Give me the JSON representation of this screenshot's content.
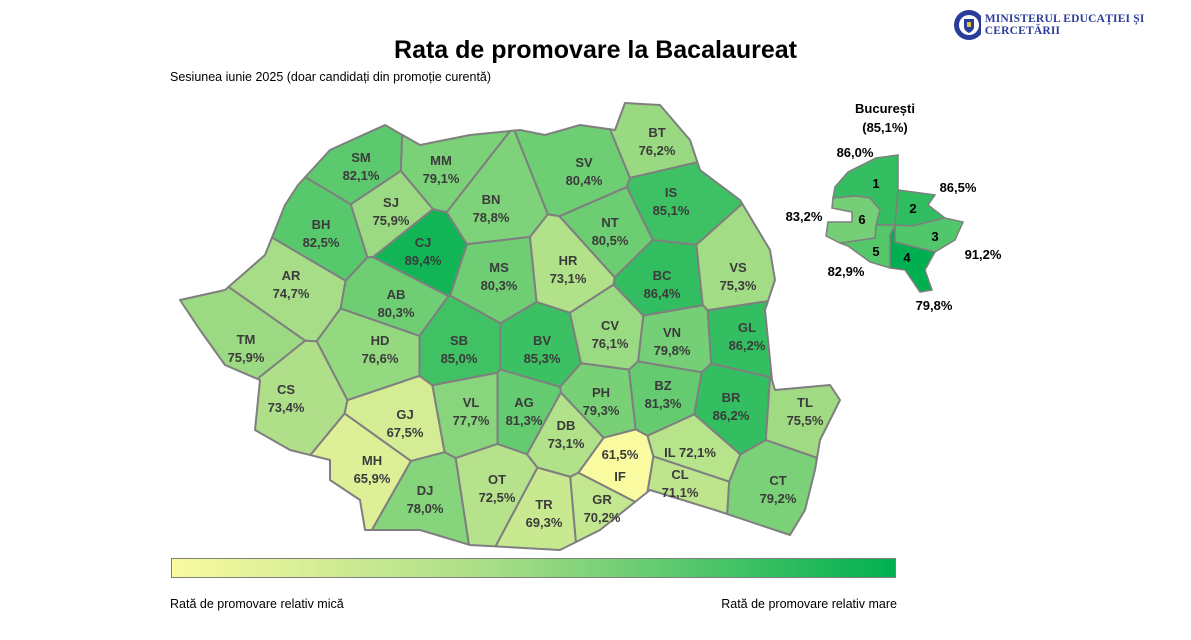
{
  "header": {
    "title": "Rata de promovare la Bacalaureat",
    "subtitle": "Sesiunea iunie 2025 (doar candidați din promoție curentă)",
    "logo_text": "MINISTERUL EDUCAȚIEI ȘI CERCETĂRII"
  },
  "color_scale": {
    "low": "#fafaa0",
    "mid": "#a6dd86",
    "high": "#00b050",
    "border": "#7f7f7f"
  },
  "counties": [
    {
      "code": "SM",
      "rate": "82,1%",
      "value": 82.1
    },
    {
      "code": "MM",
      "rate": "79,1%",
      "value": 79.1
    },
    {
      "code": "BT",
      "rate": "76,2%",
      "value": 76.2
    },
    {
      "code": "SV",
      "rate": "80,4%",
      "value": 80.4
    },
    {
      "code": "BH",
      "rate": "82,5%",
      "value": 82.5
    },
    {
      "code": "SJ",
      "rate": "75,9%",
      "value": 75.9
    },
    {
      "code": "CJ",
      "rate": "89,4%",
      "value": 89.4
    },
    {
      "code": "BN",
      "rate": "78,8%",
      "value": 78.8
    },
    {
      "code": "IS",
      "rate": "85,1%",
      "value": 85.1
    },
    {
      "code": "NT",
      "rate": "80,5%",
      "value": 80.5
    },
    {
      "code": "AR",
      "rate": "74,7%",
      "value": 74.7
    },
    {
      "code": "MS",
      "rate": "80,3%",
      "value": 80.3
    },
    {
      "code": "HR",
      "rate": "73,1%",
      "value": 73.1
    },
    {
      "code": "BC",
      "rate": "86,4%",
      "value": 86.4
    },
    {
      "code": "VS",
      "rate": "75,3%",
      "value": 75.3
    },
    {
      "code": "AB",
      "rate": "80,3%",
      "value": 80.3
    },
    {
      "code": "TM",
      "rate": "75,9%",
      "value": 75.9
    },
    {
      "code": "HD",
      "rate": "76,6%",
      "value": 76.6
    },
    {
      "code": "SB",
      "rate": "85,0%",
      "value": 85.0
    },
    {
      "code": "BV",
      "rate": "85,3%",
      "value": 85.3
    },
    {
      "code": "CV",
      "rate": "76,1%",
      "value": 76.1
    },
    {
      "code": "VN",
      "rate": "79,8%",
      "value": 79.8
    },
    {
      "code": "GL",
      "rate": "86,2%",
      "value": 86.2
    },
    {
      "code": "CS",
      "rate": "73,4%",
      "value": 73.4
    },
    {
      "code": "GJ",
      "rate": "67,5%",
      "value": 67.5
    },
    {
      "code": "VL",
      "rate": "77,7%",
      "value": 77.7
    },
    {
      "code": "AG",
      "rate": "81,3%",
      "value": 81.3
    },
    {
      "code": "PH",
      "rate": "79,3%",
      "value": 79.3
    },
    {
      "code": "BZ",
      "rate": "81,3%",
      "value": 81.3
    },
    {
      "code": "BR",
      "rate": "86,2%",
      "value": 86.2
    },
    {
      "code": "TL",
      "rate": "75,5%",
      "value": 75.5
    },
    {
      "code": "MH",
      "rate": "65,9%",
      "value": 65.9
    },
    {
      "code": "DJ",
      "rate": "78,0%",
      "value": 78.0
    },
    {
      "code": "OT",
      "rate": "72,5%",
      "value": 72.5
    },
    {
      "code": "DB",
      "rate": "73,1%",
      "value": 73.1
    },
    {
      "code": "IF",
      "rate": "61,5%",
      "value": 61.5
    },
    {
      "code": "IL",
      "rate": "72,1%",
      "value": 72.1
    },
    {
      "code": "CL",
      "rate": "71,1%",
      "value": 71.1
    },
    {
      "code": "GR",
      "rate": "70,2%",
      "value": 70.2
    },
    {
      "code": "TR",
      "rate": "69,3%",
      "value": 69.3
    },
    {
      "code": "CT",
      "rate": "79,2%",
      "value": 79.2
    }
  ],
  "bucharest": {
    "title": "București",
    "total": "(85,1%)",
    "sectors": [
      {
        "num": "1",
        "rate": "86,0%",
        "value": 86.0
      },
      {
        "num": "2",
        "rate": "86,5%",
        "value": 86.5
      },
      {
        "num": "3",
        "rate": "83,2%",
        "value": 83.2
      },
      {
        "num": "4",
        "rate": "91,2%",
        "value": 91.2
      },
      {
        "num": "5",
        "rate": "82,9%",
        "value": 82.9
      },
      {
        "num": "6",
        "rate": "79,8%",
        "value": 79.8
      }
    ]
  },
  "legend": {
    "low_label": "Rată de promovare relativ mică",
    "high_label": "Rată de promovare relativ mare"
  }
}
